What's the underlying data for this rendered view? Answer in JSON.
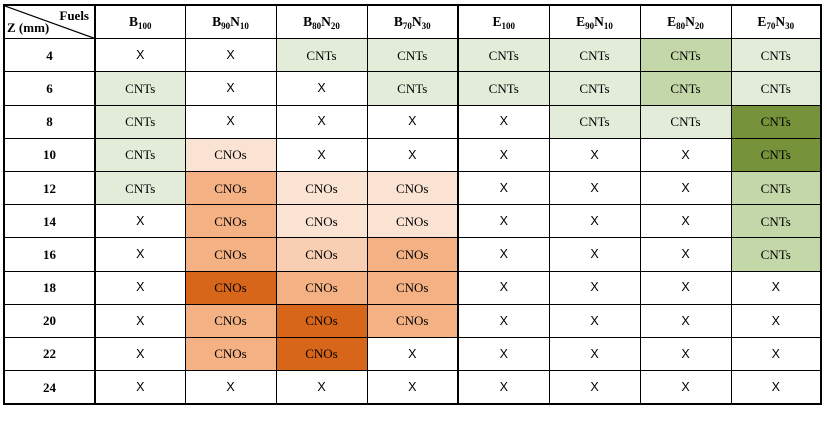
{
  "corner": {
    "fuels_label": "Fuels",
    "z_label": "Z (mm)"
  },
  "columns": [
    {
      "base": "B",
      "sub1": "100",
      "mid": "",
      "sub2": ""
    },
    {
      "base": "B",
      "sub1": "90",
      "mid": "N",
      "sub2": "10"
    },
    {
      "base": "B",
      "sub1": "80",
      "mid": "N",
      "sub2": "20"
    },
    {
      "base": "B",
      "sub1": "70",
      "mid": "N",
      "sub2": "30"
    },
    {
      "base": "E",
      "sub1": "100",
      "mid": "",
      "sub2": ""
    },
    {
      "base": "E",
      "sub1": "90",
      "mid": "N",
      "sub2": "10"
    },
    {
      "base": "E",
      "sub1": "80",
      "mid": "N",
      "sub2": "20"
    },
    {
      "base": "E",
      "sub1": "70",
      "mid": "N",
      "sub2": "30"
    }
  ],
  "colors": {
    "g1": "#e3ecd9",
    "g2": "#c3d7a8",
    "g3": "#76933c",
    "o1": "#fbe3d3",
    "o2": "#f8cfb3",
    "o3": "#f4b183",
    "o4": "#d8661a",
    "none": "#ffffff"
  },
  "rows": [
    {
      "z": "4",
      "cells": [
        [
          "X",
          "none"
        ],
        [
          "X",
          "none"
        ],
        [
          "CNTs",
          "g1"
        ],
        [
          "CNTs",
          "g1"
        ],
        [
          "CNTs",
          "g1"
        ],
        [
          "CNTs",
          "g1"
        ],
        [
          "CNTs",
          "g2"
        ],
        [
          "CNTs",
          "g1"
        ]
      ]
    },
    {
      "z": "6",
      "cells": [
        [
          "CNTs",
          "g1"
        ],
        [
          "X",
          "none"
        ],
        [
          "X",
          "none"
        ],
        [
          "CNTs",
          "g1"
        ],
        [
          "CNTs",
          "g1"
        ],
        [
          "CNTs",
          "g1"
        ],
        [
          "CNTs",
          "g2"
        ],
        [
          "CNTs",
          "g1"
        ]
      ]
    },
    {
      "z": "8",
      "cells": [
        [
          "CNTs",
          "g1"
        ],
        [
          "X",
          "none"
        ],
        [
          "X",
          "none"
        ],
        [
          "X",
          "none"
        ],
        [
          "X",
          "none"
        ],
        [
          "CNTs",
          "g1"
        ],
        [
          "CNTs",
          "g1"
        ],
        [
          "CNTs",
          "g3"
        ]
      ]
    },
    {
      "z": "10",
      "cells": [
        [
          "CNTs",
          "g1"
        ],
        [
          "CNOs",
          "o1"
        ],
        [
          "X",
          "none"
        ],
        [
          "X",
          "none"
        ],
        [
          "X",
          "none"
        ],
        [
          "X",
          "none"
        ],
        [
          "X",
          "none"
        ],
        [
          "CNTs",
          "g3"
        ]
      ]
    },
    {
      "z": "12",
      "cells": [
        [
          "CNTs",
          "g1"
        ],
        [
          "CNOs",
          "o3"
        ],
        [
          "CNOs",
          "o1"
        ],
        [
          "CNOs",
          "o1"
        ],
        [
          "X",
          "none"
        ],
        [
          "X",
          "none"
        ],
        [
          "X",
          "none"
        ],
        [
          "CNTs",
          "g2"
        ]
      ]
    },
    {
      "z": "14",
      "cells": [
        [
          "X",
          "none"
        ],
        [
          "CNOs",
          "o3"
        ],
        [
          "CNOs",
          "o1"
        ],
        [
          "CNOs",
          "o1"
        ],
        [
          "X",
          "none"
        ],
        [
          "X",
          "none"
        ],
        [
          "X",
          "none"
        ],
        [
          "CNTs",
          "g2"
        ]
      ]
    },
    {
      "z": "16",
      "cells": [
        [
          "X",
          "none"
        ],
        [
          "CNOs",
          "o3"
        ],
        [
          "CNOs",
          "o2"
        ],
        [
          "CNOs",
          "o3"
        ],
        [
          "X",
          "none"
        ],
        [
          "X",
          "none"
        ],
        [
          "X",
          "none"
        ],
        [
          "CNTs",
          "g2"
        ]
      ]
    },
    {
      "z": "18",
      "cells": [
        [
          "X",
          "none"
        ],
        [
          "CNOs",
          "o4"
        ],
        [
          "CNOs",
          "o3"
        ],
        [
          "CNOs",
          "o3"
        ],
        [
          "X",
          "none"
        ],
        [
          "X",
          "none"
        ],
        [
          "X",
          "none"
        ],
        [
          "X",
          "none"
        ]
      ]
    },
    {
      "z": "20",
      "cells": [
        [
          "X",
          "none"
        ],
        [
          "CNOs",
          "o3"
        ],
        [
          "CNOs",
          "o4"
        ],
        [
          "CNOs",
          "o3"
        ],
        [
          "X",
          "none"
        ],
        [
          "X",
          "none"
        ],
        [
          "X",
          "none"
        ],
        [
          "X",
          "none"
        ]
      ]
    },
    {
      "z": "22",
      "cells": [
        [
          "X",
          "none"
        ],
        [
          "CNOs",
          "o3"
        ],
        [
          "CNOs",
          "o4"
        ],
        [
          "X",
          "none"
        ],
        [
          "X",
          "none"
        ],
        [
          "X",
          "none"
        ],
        [
          "X",
          "none"
        ],
        [
          "X",
          "none"
        ]
      ]
    },
    {
      "z": "24",
      "cells": [
        [
          "X",
          "none"
        ],
        [
          "X",
          "none"
        ],
        [
          "X",
          "none"
        ],
        [
          "X",
          "none"
        ],
        [
          "X",
          "none"
        ],
        [
          "X",
          "none"
        ],
        [
          "X",
          "none"
        ],
        [
          "X",
          "none"
        ]
      ]
    }
  ]
}
